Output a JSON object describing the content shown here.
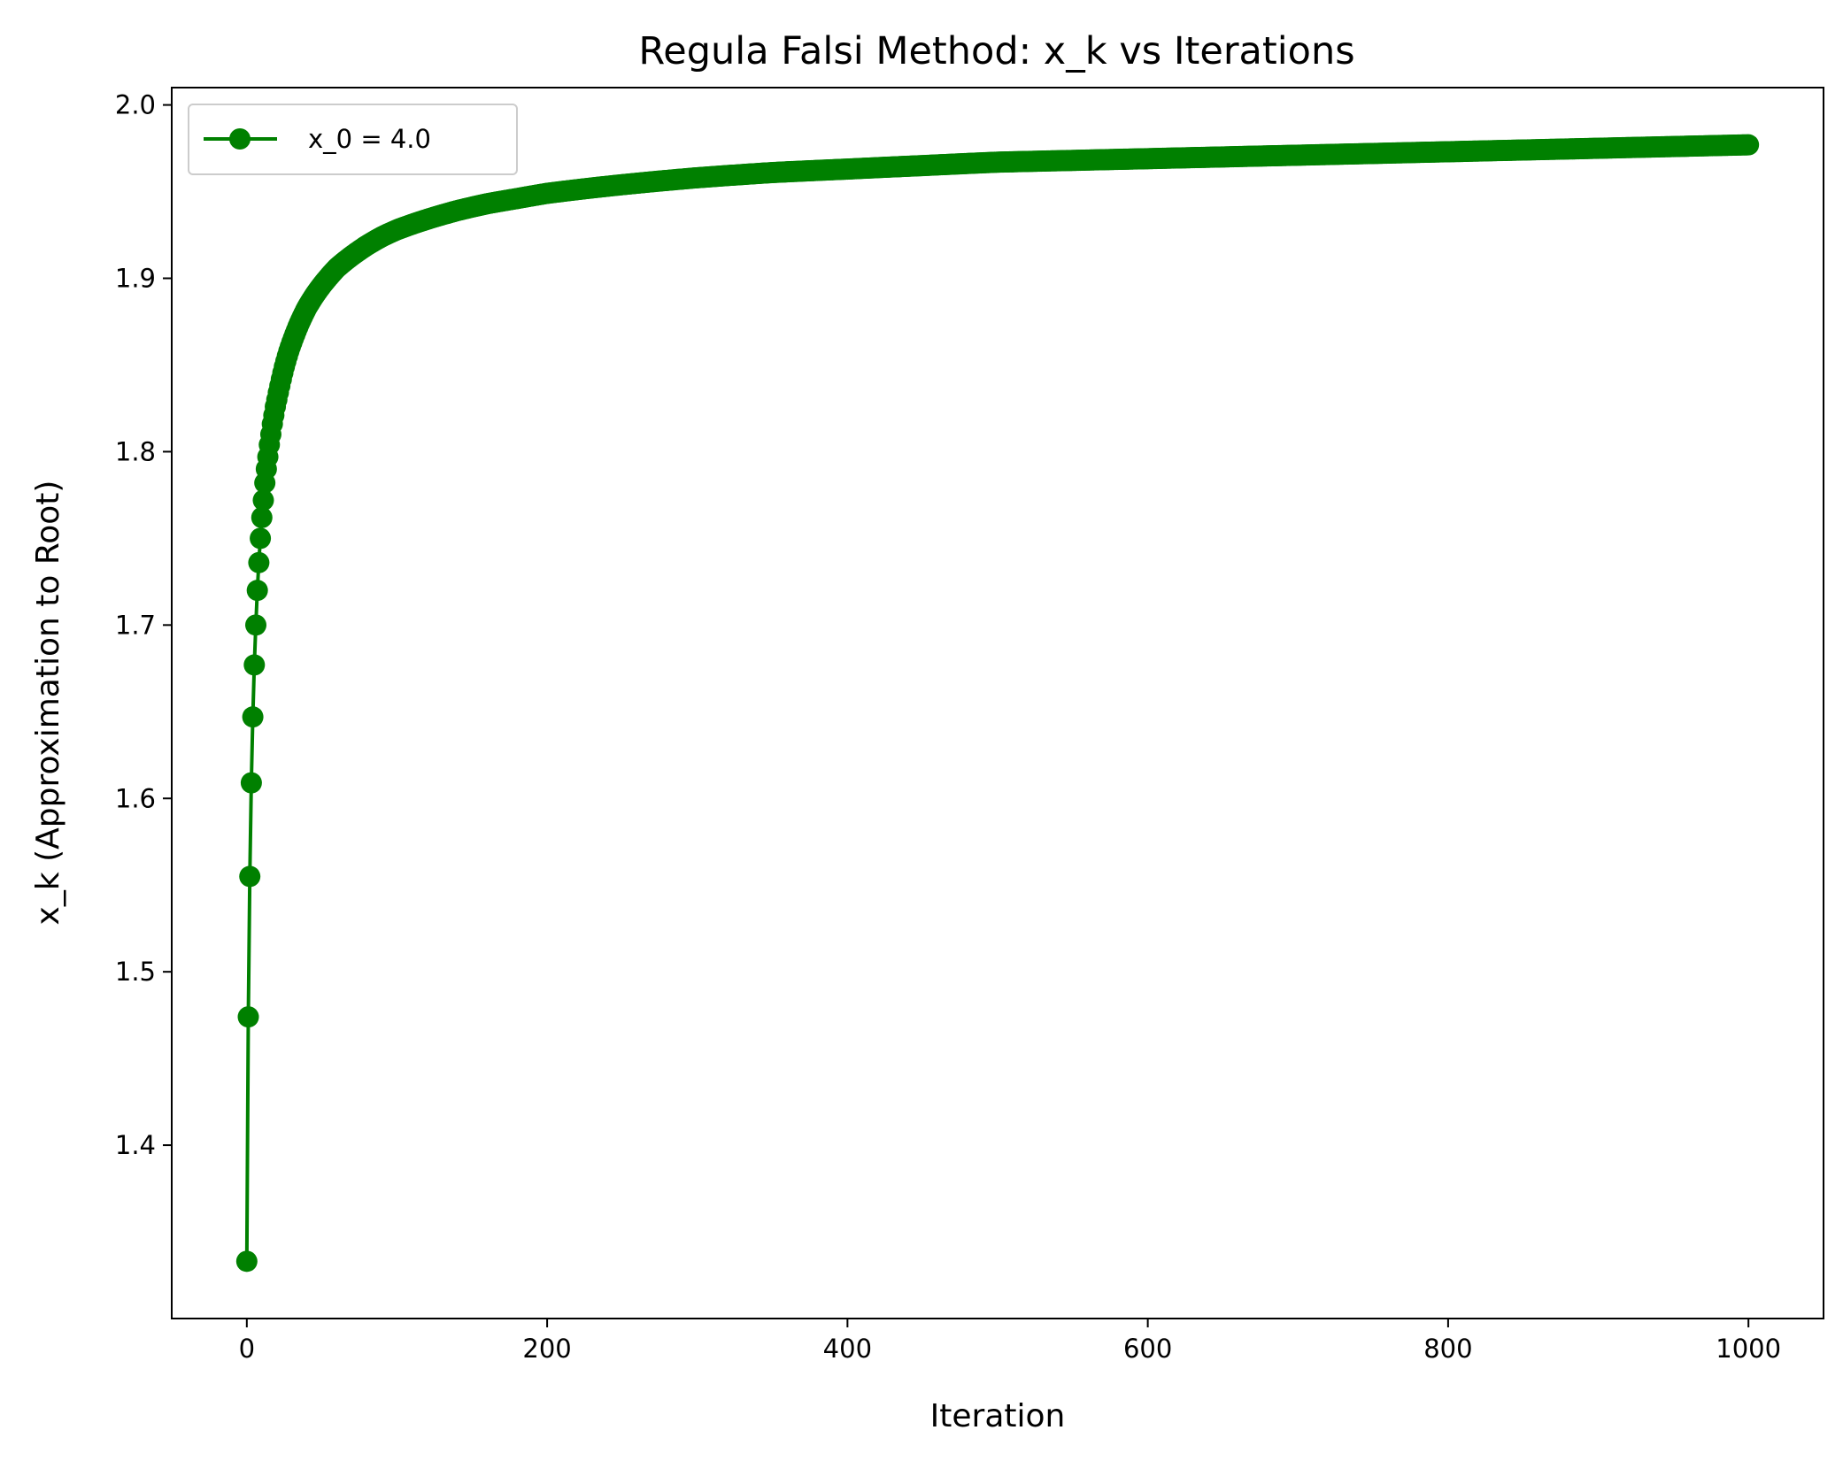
{
  "chart_data": {
    "type": "line",
    "title": "Regula Falsi Method: x_k vs Iterations",
    "xlabel": "Iteration",
    "ylabel": "x_k (Approximation to Root)",
    "xlim": [
      -50,
      1050
    ],
    "ylim": [
      1.3,
      2.01
    ],
    "x_ticks": [
      0,
      200,
      400,
      600,
      800,
      1000
    ],
    "y_ticks": [
      1.4,
      1.5,
      1.6,
      1.7,
      1.8,
      1.9,
      2.0
    ],
    "grid": false,
    "legend_position": "top-left",
    "colors": {
      "series": "#008000",
      "axes": "#000000",
      "background": "#ffffff"
    },
    "series": [
      {
        "name": "x_0 = 4.0",
        "marker": "circle",
        "x": [
          0,
          1,
          2,
          3,
          4,
          5,
          6,
          7,
          8,
          9,
          10,
          11,
          12,
          13,
          14,
          15,
          16,
          17,
          18,
          19,
          20,
          22,
          25,
          28,
          30,
          35,
          40,
          45,
          50,
          60,
          70,
          80,
          90,
          100,
          120,
          140,
          160,
          180,
          200,
          250,
          300,
          350,
          400,
          450,
          500,
          550,
          600,
          650,
          700,
          750,
          800,
          850,
          900,
          950,
          1000
        ],
        "y": [
          1.333,
          1.474,
          1.555,
          1.609,
          1.647,
          1.677,
          1.7,
          1.72,
          1.736,
          1.75,
          1.762,
          1.772,
          1.782,
          1.79,
          1.797,
          1.804,
          1.81,
          1.816,
          1.821,
          1.826,
          1.83,
          1.838,
          1.849,
          1.858,
          1.863,
          1.874,
          1.883,
          1.89,
          1.896,
          1.906,
          1.913,
          1.919,
          1.924,
          1.928,
          1.934,
          1.939,
          1.943,
          1.946,
          1.949,
          1.954,
          1.958,
          1.961,
          1.963,
          1.965,
          1.967,
          1.968,
          1.969,
          1.97,
          1.971,
          1.972,
          1.973,
          1.974,
          1.975,
          1.976,
          1.977
        ]
      }
    ]
  }
}
